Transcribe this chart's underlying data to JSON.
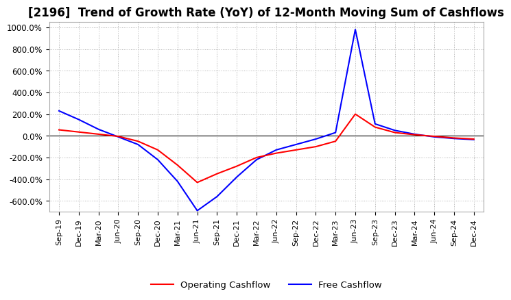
{
  "title": "[2196]  Trend of Growth Rate (YoY) of 12-Month Moving Sum of Cashflows",
  "ylim": [
    -700,
    1050
  ],
  "yticks": [
    -600,
    -400,
    -200,
    0,
    200,
    400,
    600,
    800,
    1000
  ],
  "ytick_labels": [
    "-600.0%",
    "-400.0%",
    "-200.0%",
    "0.0%",
    "200.0%",
    "400.0%",
    "600.0%",
    "800.0%",
    "1000.0%"
  ],
  "xlabel_dates": [
    "Sep-19",
    "Dec-19",
    "Mar-20",
    "Jun-20",
    "Sep-20",
    "Dec-20",
    "Mar-21",
    "Jun-21",
    "Sep-21",
    "Dec-21",
    "Mar-22",
    "Jun-22",
    "Sep-22",
    "Dec-22",
    "Mar-23",
    "Jun-23",
    "Sep-23",
    "Dec-23",
    "Mar-24",
    "Jun-24",
    "Sep-24",
    "Dec-24"
  ],
  "operating_cashflow": [
    55,
    35,
    15,
    -5,
    -50,
    -130,
    -270,
    -430,
    -350,
    -280,
    -200,
    -160,
    -130,
    -100,
    -50,
    200,
    80,
    30,
    10,
    -5,
    -20,
    -30
  ],
  "free_cashflow": [
    230,
    150,
    60,
    -10,
    -80,
    -220,
    -420,
    -690,
    -560,
    -380,
    -220,
    -130,
    -80,
    -30,
    30,
    980,
    110,
    50,
    15,
    -10,
    -25,
    -35
  ],
  "op_color": "#ff0000",
  "fc_color": "#0000ff",
  "grid_color": "#b0b0b0",
  "grid_style": "dotted",
  "bg_color": "#ffffff",
  "title_fontsize": 12,
  "legend_labels": [
    "Operating Cashflow",
    "Free Cashflow"
  ]
}
